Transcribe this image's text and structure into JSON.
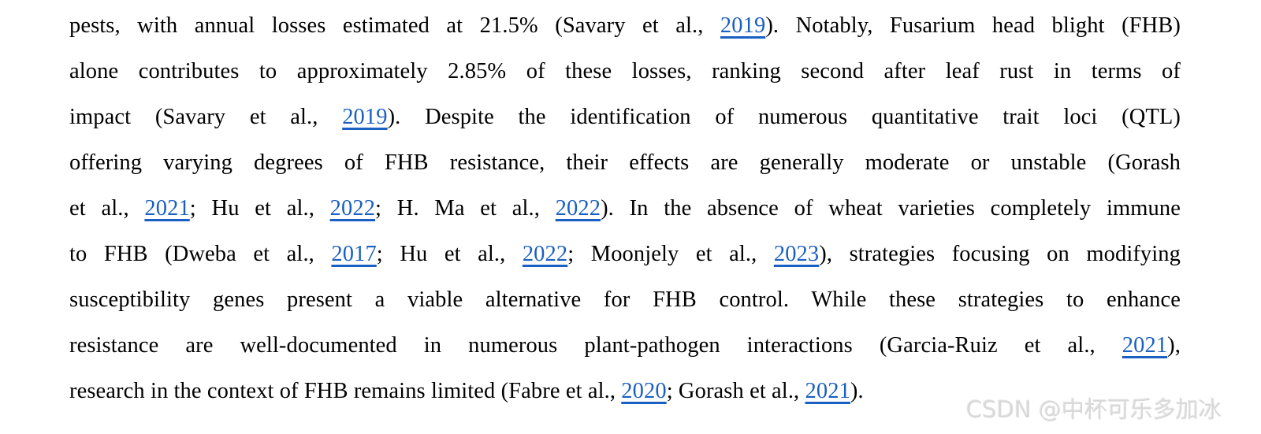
{
  "colors": {
    "background": "#ffffff",
    "text": "#000000",
    "link": "#1a5fc2",
    "watermark": "#d9d9d9"
  },
  "watermark": {
    "text": "CSDN @中杯可乐多加冰"
  },
  "paragraph": {
    "lines": [
      {
        "justify": true,
        "segments": [
          {
            "t": "pests, with annual losses estimated at 21.5% (Savary et al., ",
            "link": false
          },
          {
            "t": "2019",
            "link": true
          },
          {
            "t": "). Notably, Fusarium head blight (FHB)",
            "link": false
          }
        ]
      },
      {
        "justify": true,
        "segments": [
          {
            "t": "alone contributes to approximately 2.85% of these losses, ranking second after leaf rust in terms of",
            "link": false
          }
        ]
      },
      {
        "justify": true,
        "segments": [
          {
            "t": "impact (Savary et al., ",
            "link": false
          },
          {
            "t": "2019",
            "link": true
          },
          {
            "t": "). Despite the identification of numerous quantitative trait loci (QTL)",
            "link": false
          }
        ]
      },
      {
        "justify": true,
        "segments": [
          {
            "t": "offering varying degrees of FHB resistance, their effects are generally moderate or unstable (Gorash",
            "link": false
          }
        ]
      },
      {
        "justify": true,
        "segments": [
          {
            "t": "et al., ",
            "link": false
          },
          {
            "t": "2021",
            "link": true
          },
          {
            "t": "; Hu et al., ",
            "link": false
          },
          {
            "t": "2022",
            "link": true
          },
          {
            "t": "; H. Ma et al., ",
            "link": false
          },
          {
            "t": "2022",
            "link": true
          },
          {
            "t": "). In the absence of wheat varieties completely immune",
            "link": false
          }
        ]
      },
      {
        "justify": true,
        "segments": [
          {
            "t": "to FHB (Dweba et al., ",
            "link": false
          },
          {
            "t": "2017",
            "link": true
          },
          {
            "t": "; Hu et al., ",
            "link": false
          },
          {
            "t": "2022",
            "link": true
          },
          {
            "t": "; Moonjely et al., ",
            "link": false
          },
          {
            "t": "2023",
            "link": true
          },
          {
            "t": "), strategies focusing on modifying",
            "link": false
          }
        ]
      },
      {
        "justify": true,
        "segments": [
          {
            "t": "susceptibility genes present a viable alternative for FHB control. While these strategies to enhance",
            "link": false
          }
        ]
      },
      {
        "justify": true,
        "segments": [
          {
            "t": "resistance are well-documented in numerous plant-pathogen interactions (Garcia-Ruiz et al., ",
            "link": false
          },
          {
            "t": "2021",
            "link": true
          },
          {
            "t": "),",
            "link": false
          }
        ]
      },
      {
        "justify": false,
        "segments": [
          {
            "t": "research in the context of FHB remains limited (Fabre et al., ",
            "link": false
          },
          {
            "t": "2020",
            "link": true
          },
          {
            "t": "; Gorash et al., ",
            "link": false
          },
          {
            "t": "2021",
            "link": true
          },
          {
            "t": ").",
            "link": false
          }
        ]
      }
    ]
  }
}
